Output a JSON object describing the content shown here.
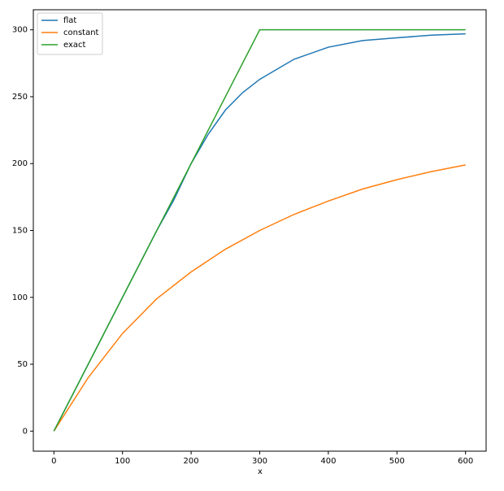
{
  "chart_data": {
    "type": "line",
    "xlabel": "x",
    "xlim": [
      -30,
      630
    ],
    "ylim": [
      -15,
      315
    ],
    "xticks": [
      0,
      100,
      200,
      300,
      400,
      500,
      600
    ],
    "yticks": [
      0,
      50,
      100,
      150,
      200,
      250,
      300
    ],
    "grid": false,
    "legend": "upper-left",
    "series": [
      {
        "name": "flat",
        "color": "#1f77b4",
        "x": [
          0,
          50,
          100,
          150,
          175,
          200,
          225,
          250,
          275,
          300,
          350,
          400,
          450,
          500,
          550,
          600
        ],
        "values": [
          0,
          50,
          100,
          150,
          173,
          200,
          222,
          240,
          253,
          263,
          278,
          287,
          292,
          294,
          296,
          297
        ]
      },
      {
        "name": "constant",
        "color": "#ff7f0e",
        "x": [
          0,
          50,
          100,
          150,
          200,
          250,
          300,
          350,
          400,
          450,
          500,
          550,
          600
        ],
        "values": [
          0,
          40,
          73,
          99,
          119,
          136,
          150,
          162,
          172,
          181,
          188,
          194,
          199
        ]
      },
      {
        "name": "exact",
        "color": "#2ca02c",
        "x": [
          0,
          300,
          600
        ],
        "values": [
          0,
          300,
          300
        ]
      }
    ]
  }
}
